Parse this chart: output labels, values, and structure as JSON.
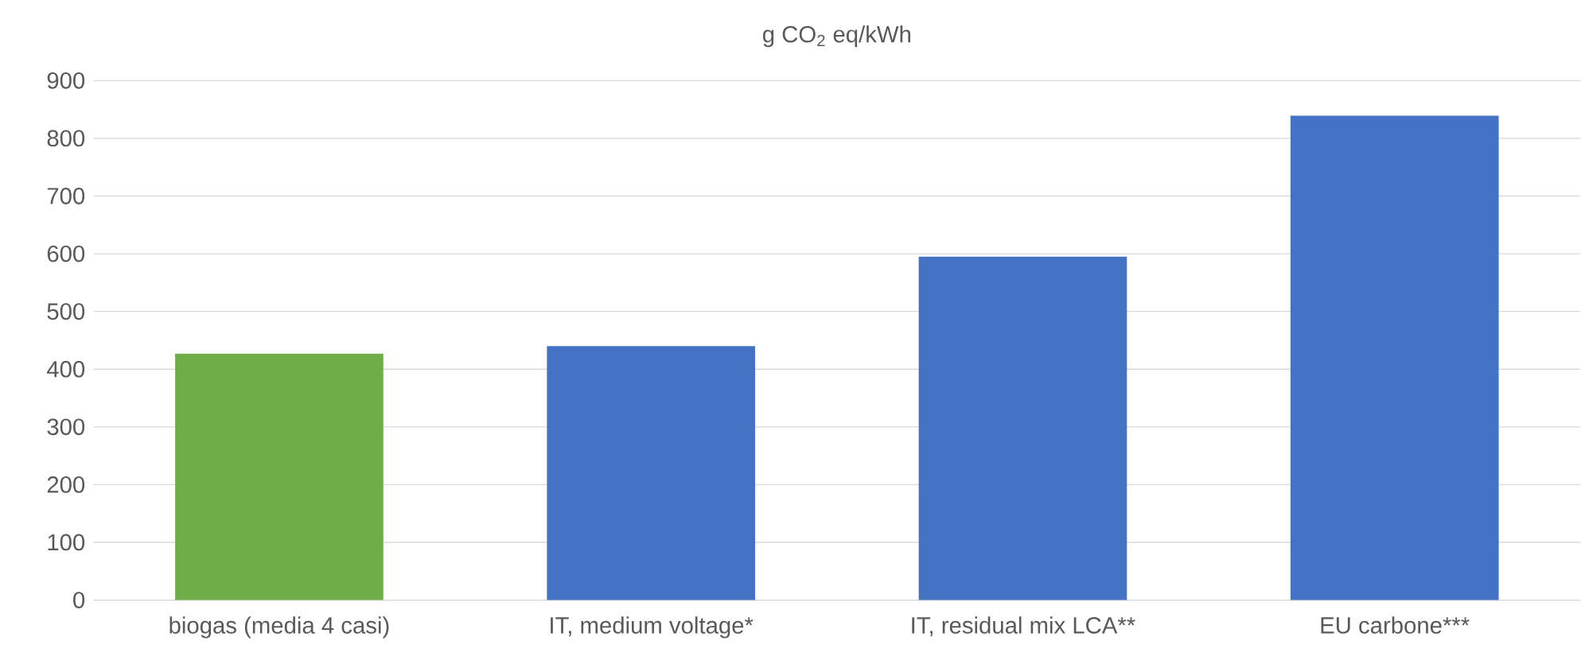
{
  "chart_data": {
    "type": "bar",
    "title": "g CO$_{2}$ eq/kWh",
    "categories": [
      "biogas (media 4 casi)",
      "IT, medium voltage*",
      "IT, residual mix LCA**",
      "EU carbone***"
    ],
    "values": [
      427,
      440,
      595,
      839
    ],
    "colors": [
      "#70ad47",
      "#4472c4",
      "#4472c4",
      "#4472c4"
    ],
    "ylim": [
      0,
      900
    ],
    "yticks": [
      0,
      100,
      200,
      300,
      400,
      500,
      600,
      700,
      800,
      900
    ],
    "grid": "y"
  }
}
